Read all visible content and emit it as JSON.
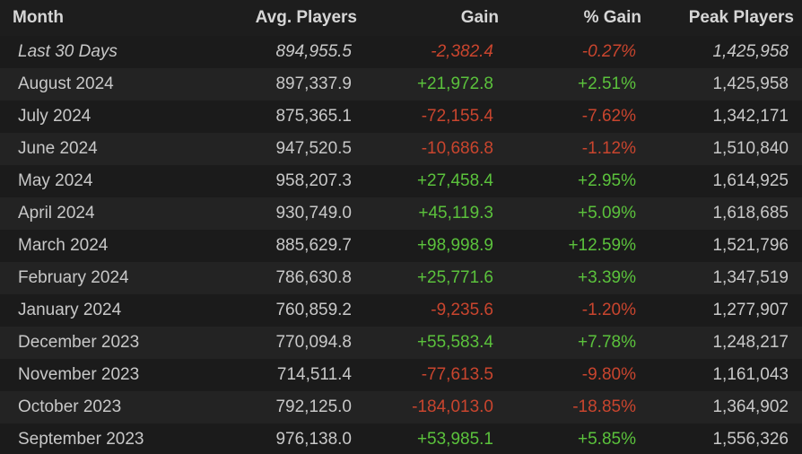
{
  "table": {
    "columns": [
      "Month",
      "Avg. Players",
      "Gain",
      "% Gain",
      "Peak Players"
    ],
    "rows": [
      [
        "Last 30 Days",
        "894,955.5",
        "-2,382.4",
        "-0.27%",
        "1,425,958"
      ],
      [
        "August 2024",
        "897,337.9",
        "+21,972.8",
        "+2.51%",
        "1,425,958"
      ],
      [
        "July 2024",
        "875,365.1",
        "-72,155.4",
        "-7.62%",
        "1,342,171"
      ],
      [
        "June 2024",
        "947,520.5",
        "-10,686.8",
        "-1.12%",
        "1,510,840"
      ],
      [
        "May 2024",
        "958,207.3",
        "+27,458.4",
        "+2.95%",
        "1,614,925"
      ],
      [
        "April 2024",
        "930,749.0",
        "+45,119.3",
        "+5.09%",
        "1,618,685"
      ],
      [
        "March 2024",
        "885,629.7",
        "+98,998.9",
        "+12.59%",
        "1,521,796"
      ],
      [
        "February 2024",
        "786,630.8",
        "+25,771.6",
        "+3.39%",
        "1,347,519"
      ],
      [
        "January 2024",
        "760,859.2",
        "-9,235.6",
        "-1.20%",
        "1,277,907"
      ],
      [
        "December 2023",
        "770,094.8",
        "+55,583.4",
        "+7.78%",
        "1,248,217"
      ],
      [
        "November 2023",
        "714,511.4",
        "-77,613.5",
        "-9.80%",
        "1,161,043"
      ],
      [
        "October 2023",
        "792,125.0",
        "-184,013.0",
        "-18.85%",
        "1,364,902"
      ],
      [
        "September 2023",
        "976,138.0",
        "+53,985.1",
        "+5.85%",
        "1,556,326"
      ]
    ]
  }
}
